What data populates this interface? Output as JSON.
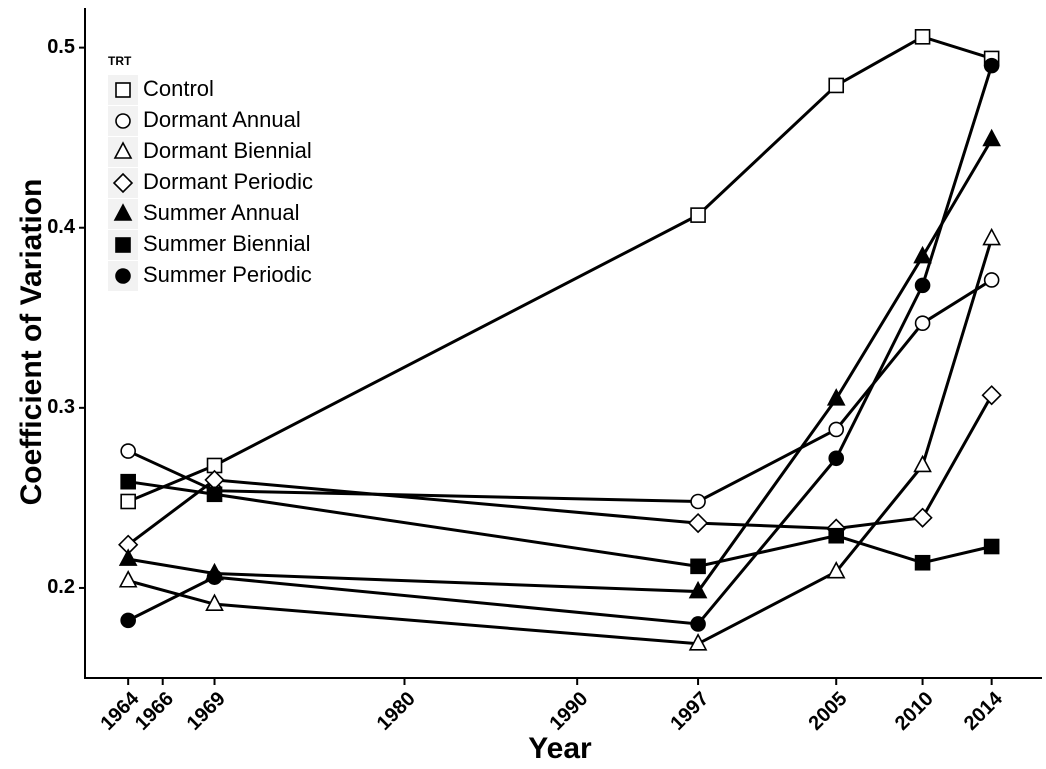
{
  "chart_data": {
    "type": "line",
    "x_label": "Year",
    "y_label": "Coefficient of Variation",
    "legend_title": "TRT",
    "legend": "top-left",
    "grid": false,
    "x": [
      1964,
      1969,
      1997,
      2005,
      2010,
      2014
    ],
    "xlim": [
      1961.5,
      2016.8
    ],
    "xticks": [
      1964,
      1966,
      1969,
      1980,
      1990,
      1997,
      2005,
      2010,
      2014
    ],
    "ylim": [
      0.15,
      0.522
    ],
    "yticks": [
      0.2,
      0.3,
      0.4,
      0.5
    ],
    "series": [
      {
        "name": "Control",
        "color": "#000000",
        "marker": "square-open",
        "values": [
          0.248,
          0.268,
          0.407,
          0.479,
          0.506,
          0.494
        ]
      },
      {
        "name": "Dormant Annual",
        "color": "#000000",
        "marker": "circle-open",
        "values": [
          0.276,
          0.254,
          0.248,
          0.288,
          0.347,
          0.371
        ]
      },
      {
        "name": "Dormant Biennial",
        "color": "#000000",
        "marker": "triangle-open",
        "values": [
          0.204,
          0.191,
          0.169,
          0.209,
          0.268,
          0.394
        ]
      },
      {
        "name": "Dormant Periodic",
        "color": "#000000",
        "marker": "diamond-open",
        "values": [
          0.224,
          0.26,
          0.236,
          0.233,
          0.239,
          0.307
        ]
      },
      {
        "name": "Summer Annual",
        "color": "#000000",
        "marker": "triangle-filled",
        "values": [
          0.216,
          0.208,
          0.198,
          0.305,
          0.384,
          0.449
        ]
      },
      {
        "name": "Summer Biennial",
        "color": "#000000",
        "marker": "square-filled",
        "values": [
          0.259,
          0.252,
          0.212,
          0.229,
          0.214,
          0.223
        ]
      },
      {
        "name": "Summer Periodic",
        "color": "#000000",
        "marker": "circle-filled",
        "values": [
          0.182,
          0.206,
          0.18,
          0.272,
          0.368,
          0.49
        ]
      }
    ]
  }
}
